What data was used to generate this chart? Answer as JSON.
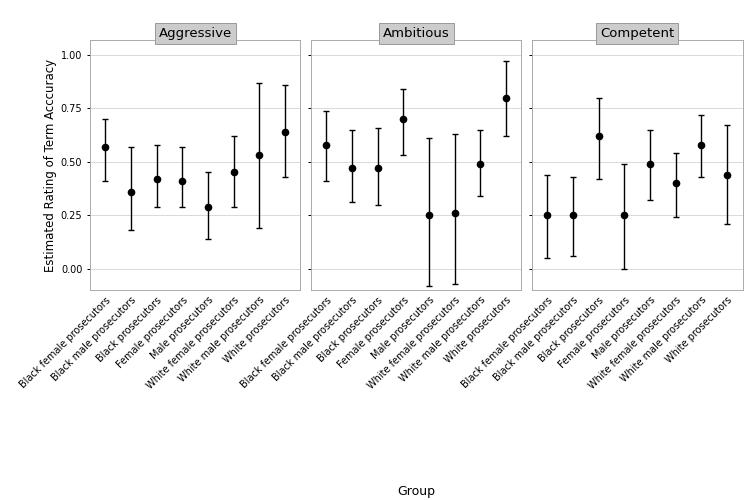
{
  "panels": [
    "Aggressive",
    "Ambitious",
    "Competent"
  ],
  "groups": [
    "Black female prosecutors",
    "Black male prosecutors",
    "Black prosecutors",
    "Female prosecutors",
    "Male prosecutors",
    "White female prosecutors",
    "White male prosecutors",
    "White prosecutors"
  ],
  "data": {
    "Aggressive": {
      "means": [
        0.57,
        0.36,
        0.42,
        0.41,
        0.29,
        0.45,
        0.53,
        0.64
      ],
      "lower": [
        0.41,
        0.18,
        0.29,
        0.29,
        0.14,
        0.29,
        0.19,
        0.43
      ],
      "upper": [
        0.7,
        0.57,
        0.58,
        0.57,
        0.45,
        0.62,
        0.87,
        0.86
      ]
    },
    "Ambitious": {
      "means": [
        0.58,
        0.47,
        0.47,
        0.7,
        0.25,
        0.26,
        0.49,
        0.8
      ],
      "lower": [
        0.41,
        0.31,
        0.3,
        0.53,
        -0.08,
        -0.07,
        0.34,
        0.62
      ],
      "upper": [
        0.74,
        0.65,
        0.66,
        0.84,
        0.61,
        0.63,
        0.65,
        0.97
      ]
    },
    "Competent": {
      "means": [
        0.25,
        0.25,
        0.62,
        0.25,
        0.49,
        0.4,
        0.58,
        0.44
      ],
      "lower": [
        0.05,
        0.06,
        0.42,
        0.0,
        0.32,
        0.24,
        0.43,
        0.21
      ],
      "upper": [
        0.44,
        0.43,
        0.8,
        0.49,
        0.65,
        0.54,
        0.72,
        0.67
      ]
    }
  },
  "ylabel": "Estimated Rating of Term Acccuracy",
  "xlabel": "Group",
  "ylim": [
    -0.1,
    1.07
  ],
  "yticks": [
    0.0,
    0.25,
    0.5,
    0.75,
    1.0
  ],
  "ytick_labels": [
    "0.00",
    "0.25",
    "0.50",
    "0.75",
    "1.00"
  ],
  "background_color": "#ffffff",
  "panel_header_color": "#cccccc",
  "panel_header_edge": "#999999",
  "grid_color": "#d9d9d9",
  "point_color": "#000000",
  "point_size": 4.5,
  "line_color": "#000000",
  "line_width": 1.0,
  "cap_size": 2.0,
  "ylabel_fontsize": 8.5,
  "xlabel_fontsize": 9,
  "tick_fontsize": 7,
  "panel_title_fontsize": 9.5
}
